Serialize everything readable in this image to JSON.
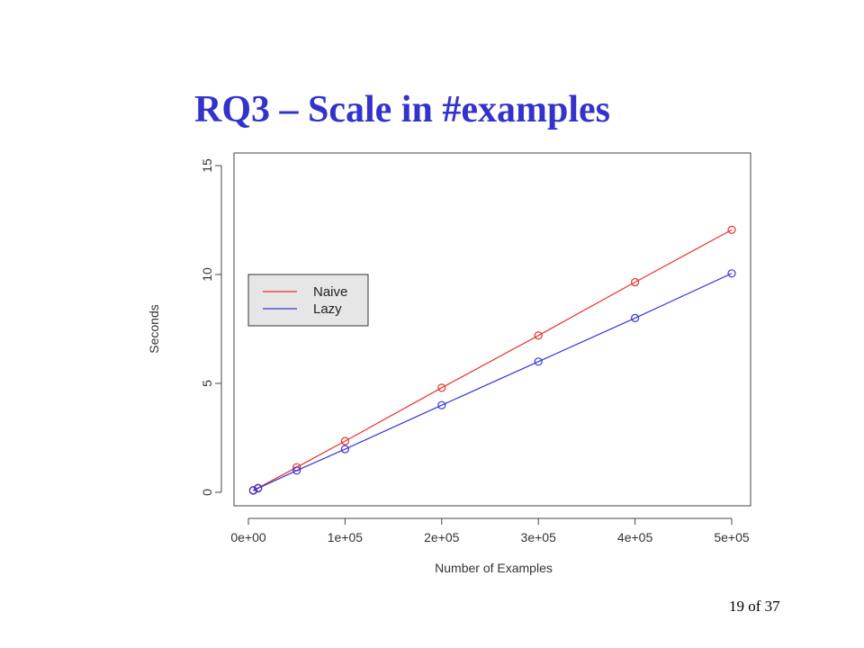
{
  "slide": {
    "title": "RQ3 – Scale in #examples",
    "page_number": "19 of 37"
  },
  "chart_data": {
    "type": "line",
    "xlabel": "Number of Examples",
    "ylabel": "Seconds",
    "xlim": [
      0,
      500000
    ],
    "ylim": [
      0,
      15
    ],
    "x_ticks": [
      0,
      100000,
      200000,
      300000,
      400000,
      500000
    ],
    "x_tick_labels": [
      "0e+00",
      "1e+05",
      "2e+05",
      "3e+05",
      "4e+05",
      "5e+05"
    ],
    "y_ticks": [
      0,
      5,
      10,
      15
    ],
    "y_tick_labels": [
      "0",
      "5",
      "10",
      "15"
    ],
    "grid": false,
    "legend_position": "center-left",
    "markers": "open-circle",
    "x": [
      5000,
      10000,
      50000,
      100000,
      200000,
      300000,
      400000,
      500000
    ],
    "series": [
      {
        "name": "Naive",
        "color": "#e8302e",
        "values": [
          0.1,
          0.2,
          1.15,
          2.35,
          4.8,
          7.2,
          9.65,
          12.05
        ]
      },
      {
        "name": "Lazy",
        "color": "#3434d8",
        "values": [
          0.08,
          0.18,
          1.0,
          1.98,
          4.0,
          6.0,
          8.0,
          10.05
        ]
      }
    ]
  }
}
